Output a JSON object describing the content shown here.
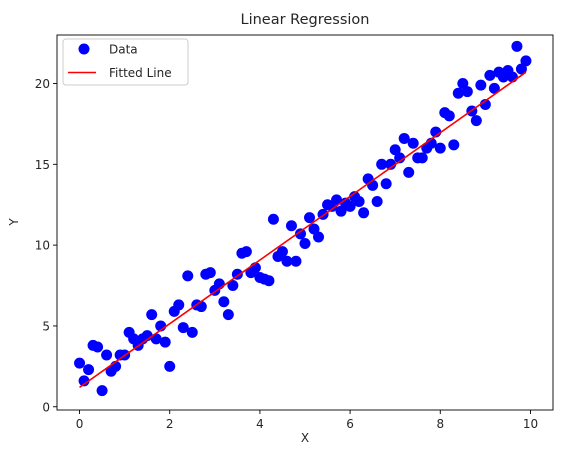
{
  "chart_data": {
    "type": "scatter",
    "title": "Linear Regression",
    "xlabel": "X",
    "ylabel": "Y",
    "xlim": [
      -0.5,
      10.5
    ],
    "ylim": [
      -0.2,
      23.0
    ],
    "xticks": [
      0,
      2,
      4,
      6,
      8,
      10
    ],
    "yticks": [
      0,
      5,
      10,
      15,
      20
    ],
    "grid": false,
    "legend_position": "top-left",
    "series": [
      {
        "name": "Data",
        "kind": "scatter",
        "color": "#0000ff",
        "points": [
          [
            0.0,
            2.7
          ],
          [
            0.1,
            1.6
          ],
          [
            0.2,
            2.3
          ],
          [
            0.3,
            3.8
          ],
          [
            0.4,
            3.7
          ],
          [
            0.5,
            1.0
          ],
          [
            0.6,
            3.2
          ],
          [
            0.7,
            2.2
          ],
          [
            0.8,
            2.5
          ],
          [
            0.9,
            3.2
          ],
          [
            1.0,
            3.2
          ],
          [
            1.1,
            4.6
          ],
          [
            1.2,
            4.2
          ],
          [
            1.3,
            3.8
          ],
          [
            1.4,
            4.2
          ],
          [
            1.5,
            4.4
          ],
          [
            1.6,
            5.7
          ],
          [
            1.7,
            4.2
          ],
          [
            1.8,
            5.0
          ],
          [
            1.9,
            4.0
          ],
          [
            2.0,
            2.5
          ],
          [
            2.1,
            5.9
          ],
          [
            2.2,
            6.3
          ],
          [
            2.3,
            4.9
          ],
          [
            2.4,
            8.1
          ],
          [
            2.5,
            4.6
          ],
          [
            2.6,
            6.3
          ],
          [
            2.7,
            6.2
          ],
          [
            2.8,
            8.2
          ],
          [
            2.9,
            8.3
          ],
          [
            3.0,
            7.2
          ],
          [
            3.1,
            7.6
          ],
          [
            3.2,
            6.5
          ],
          [
            3.3,
            5.7
          ],
          [
            3.4,
            7.5
          ],
          [
            3.5,
            8.2
          ],
          [
            3.6,
            9.5
          ],
          [
            3.7,
            9.6
          ],
          [
            3.8,
            8.3
          ],
          [
            3.9,
            8.6
          ],
          [
            4.0,
            8.0
          ],
          [
            4.1,
            7.9
          ],
          [
            4.2,
            7.8
          ],
          [
            4.3,
            11.6
          ],
          [
            4.4,
            9.3
          ],
          [
            4.5,
            9.6
          ],
          [
            4.6,
            9.0
          ],
          [
            4.7,
            11.2
          ],
          [
            4.8,
            9.0
          ],
          [
            4.9,
            10.7
          ],
          [
            5.0,
            10.1
          ],
          [
            5.1,
            11.7
          ],
          [
            5.2,
            11.0
          ],
          [
            5.3,
            10.5
          ],
          [
            5.4,
            11.9
          ],
          [
            5.5,
            12.5
          ],
          [
            5.6,
            12.4
          ],
          [
            5.7,
            12.8
          ],
          [
            5.8,
            12.1
          ],
          [
            5.9,
            12.6
          ],
          [
            6.0,
            12.4
          ],
          [
            6.1,
            13.0
          ],
          [
            6.2,
            12.7
          ],
          [
            6.3,
            12.0
          ],
          [
            6.4,
            14.1
          ],
          [
            6.5,
            13.7
          ],
          [
            6.6,
            12.7
          ],
          [
            6.7,
            15.0
          ],
          [
            6.8,
            13.8
          ],
          [
            6.9,
            15.0
          ],
          [
            7.0,
            15.9
          ],
          [
            7.1,
            15.4
          ],
          [
            7.2,
            16.6
          ],
          [
            7.3,
            14.5
          ],
          [
            7.4,
            16.3
          ],
          [
            7.5,
            15.4
          ],
          [
            7.6,
            15.4
          ],
          [
            7.7,
            16.0
          ],
          [
            7.8,
            16.3
          ],
          [
            7.9,
            17.0
          ],
          [
            8.0,
            16.0
          ],
          [
            8.1,
            18.2
          ],
          [
            8.2,
            18.0
          ],
          [
            8.3,
            16.2
          ],
          [
            8.4,
            19.4
          ],
          [
            8.5,
            20.0
          ],
          [
            8.6,
            19.5
          ],
          [
            8.7,
            18.3
          ],
          [
            8.8,
            17.7
          ],
          [
            8.9,
            19.9
          ],
          [
            9.0,
            18.7
          ],
          [
            9.1,
            20.5
          ],
          [
            9.2,
            19.7
          ],
          [
            9.3,
            20.7
          ],
          [
            9.4,
            20.4
          ],
          [
            9.5,
            20.8
          ],
          [
            9.6,
            20.4
          ],
          [
            9.7,
            22.3
          ],
          [
            9.8,
            20.9
          ],
          [
            9.9,
            21.4
          ]
        ]
      },
      {
        "name": "Fitted Line",
        "kind": "line",
        "color": "#ff0000",
        "points": [
          [
            0.0,
            1.2
          ],
          [
            9.9,
            20.7
          ]
        ]
      }
    ]
  }
}
